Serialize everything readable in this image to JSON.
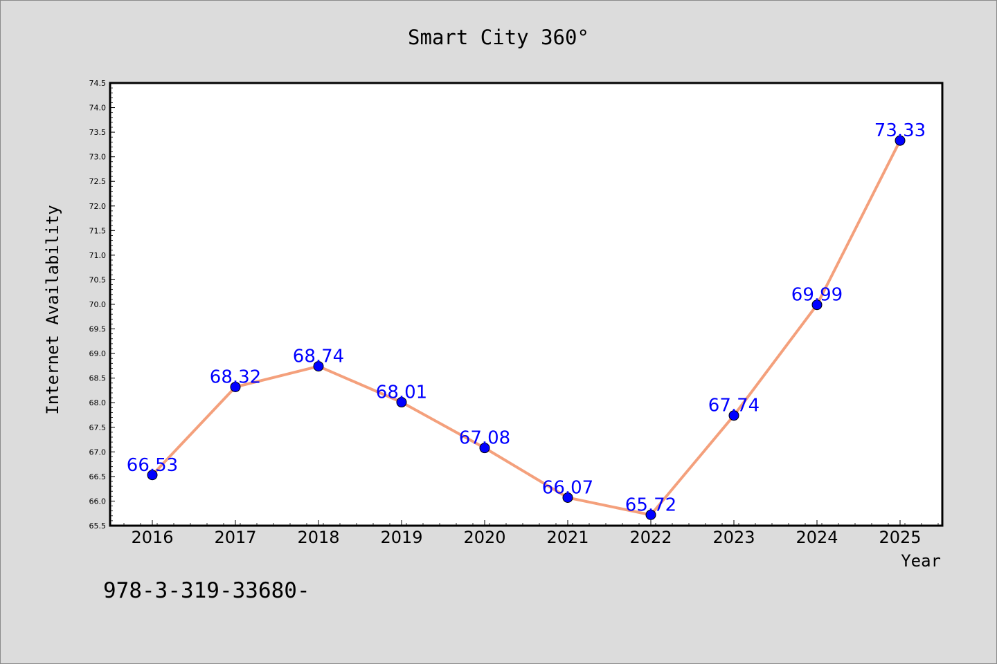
{
  "chart_data": {
    "type": "line",
    "title": "Smart City 360°",
    "xlabel": "Year",
    "ylabel": "Internet Availability",
    "categories": [
      "2016",
      "2017",
      "2018",
      "2019",
      "2020",
      "2021",
      "2022",
      "2023",
      "2024",
      "2025"
    ],
    "series": [
      {
        "values": [
          66.53,
          68.32,
          68.74,
          68.01,
          67.08,
          66.07,
          65.72,
          67.74,
          69.99,
          73.33
        ],
        "data_labels": [
          "66.53",
          "68.32",
          "68.74",
          "68.01",
          "67.08",
          "66.07",
          "65.72",
          "67.74",
          "69.99",
          "73.33"
        ]
      }
    ],
    "ylim": [
      65.5,
      74.5
    ],
    "yticks": [
      "65.5",
      "66.0",
      "66.5",
      "67.0",
      "67.5",
      "68.0",
      "68.5",
      "69.0",
      "69.5",
      "70.0",
      "70.5",
      "71.0",
      "71.5",
      "72.0",
      "72.5",
      "73.0",
      "73.5",
      "74.0",
      "74.5"
    ],
    "grid": false,
    "colors": {
      "line": "#f4a07c",
      "marker": "#0000ff",
      "data_label": "#0000ff",
      "background": "#dcdcdc",
      "plot_background": "#ffffff"
    }
  },
  "annotation": "978-3-319-33680-"
}
